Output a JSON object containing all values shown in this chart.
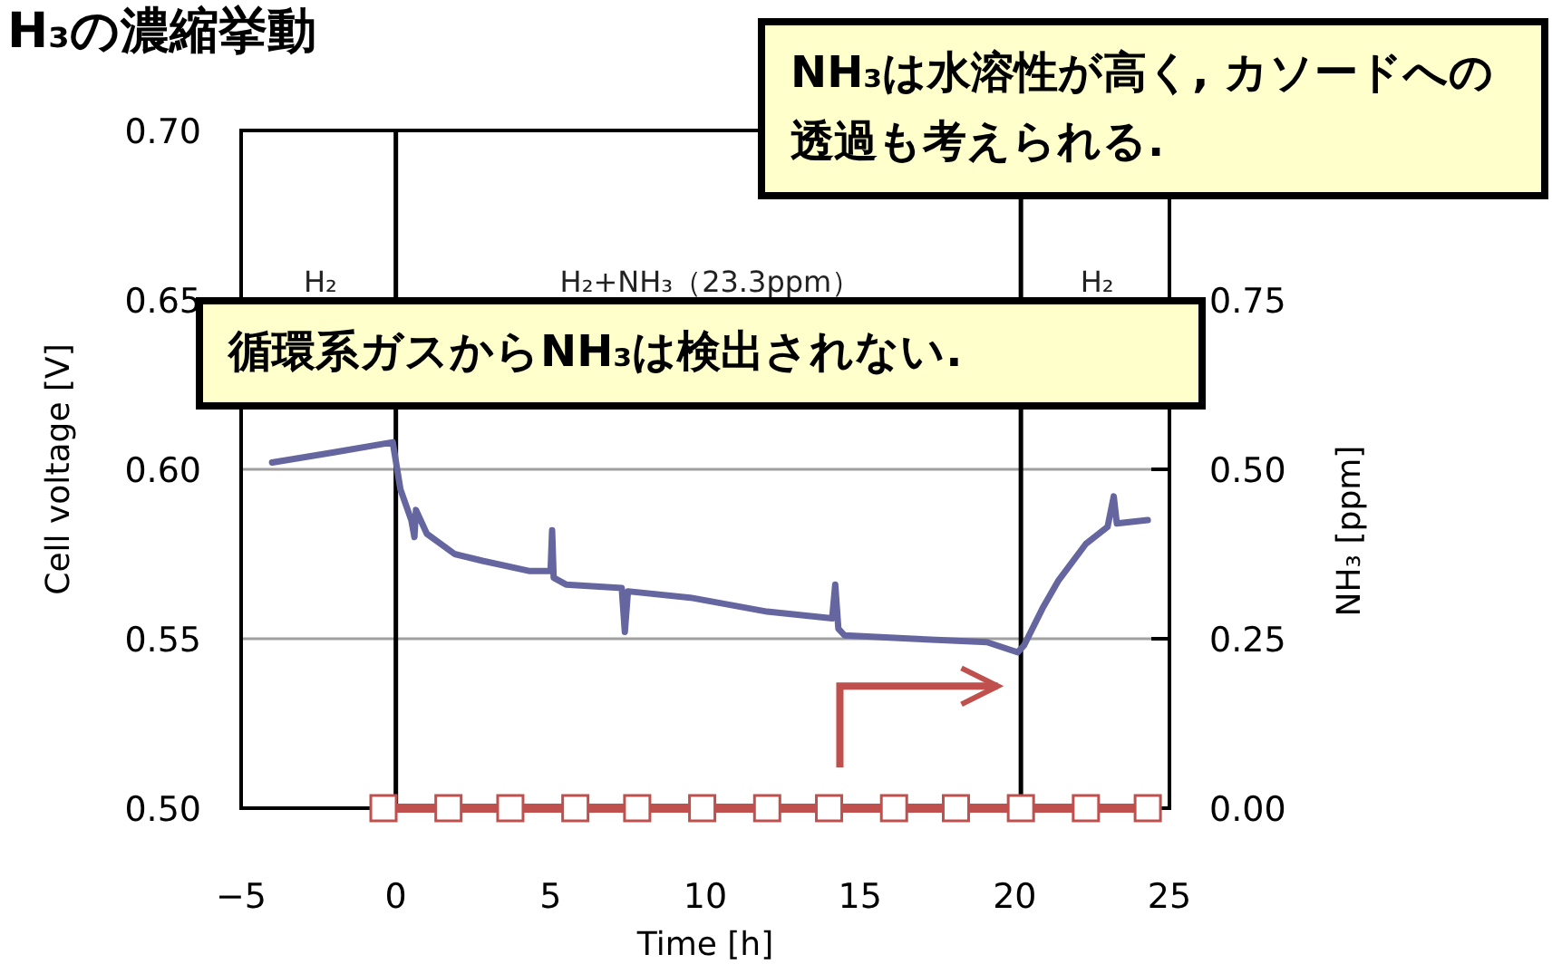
{
  "chart_data": {
    "type": "line",
    "title": "H₃の濃縮挙動",
    "xlabel": "Time [h]",
    "ylabel": "Cell voltage [V]",
    "y2label": "NH₃ [ppm]",
    "xlim": [
      -5,
      25
    ],
    "xticks": [
      {
        "value": -5,
        "label": "−5"
      },
      0,
      5,
      10,
      15,
      20,
      25
    ],
    "ylim": [
      0.5,
      0.7
    ],
    "yticks": [
      {
        "value": 0.5,
        "label": "0.50"
      },
      {
        "value": 0.55,
        "label": "0.55"
      },
      {
        "value": 0.6,
        "label": "0.60"
      },
      {
        "value": 0.65,
        "label": "0.65"
      },
      {
        "value": 0.7,
        "label": "0.70"
      }
    ],
    "y2lim": [
      0,
      1.0
    ],
    "y2ticks": [
      {
        "value": 0,
        "label": "0.00"
      },
      {
        "value": 0.25,
        "label": "0.25"
      },
      {
        "value": 0.5,
        "label": "0.50"
      },
      {
        "value": 0.75,
        "label": "0.75"
      }
    ],
    "grid": "y",
    "line_style": "solid",
    "series": [
      {
        "color": "#6566a0",
        "marker": "none",
        "x": [
          -4,
          -2,
          -0.1,
          0.15,
          0.5,
          0.6,
          0.65,
          1.0,
          1.9,
          2.8,
          4.3,
          5.0,
          5.05,
          5.1,
          5.5,
          7.3,
          7.4,
          7.5,
          9.6,
          12.0,
          14.1,
          14.2,
          14.3,
          14.5,
          16.7,
          19.1,
          20.1,
          20.3,
          20.9,
          21.4,
          22.3,
          23.0,
          23.2,
          23.3,
          24.3
        ],
        "values": [
          0.602,
          0.605,
          0.608,
          0.594,
          0.585,
          0.58,
          0.588,
          0.581,
          0.575,
          0.573,
          0.57,
          0.57,
          0.582,
          0.568,
          0.566,
          0.565,
          0.552,
          0.564,
          0.562,
          0.558,
          0.556,
          0.566,
          0.553,
          0.551,
          0.55,
          0.549,
          0.546,
          0.548,
          0.559,
          0.567,
          0.578,
          0.583,
          0.592,
          0.584,
          0.585
        ]
      },
      {
        "color": "#c0504d",
        "marker": "square",
        "axis": "y2",
        "x": [
          -0.4,
          1.7,
          3.7,
          5.8,
          7.8,
          9.9,
          12.0,
          14.0,
          16.1,
          18.1,
          20.2,
          22.3,
          24.3
        ],
        "values": [
          0,
          0,
          0,
          0,
          0,
          0,
          0,
          0,
          0,
          0,
          0,
          0,
          0
        ]
      }
    ],
    "ref_lines": [
      {
        "axis": "x",
        "value": 0,
        "color": "#000000"
      },
      {
        "axis": "x",
        "value": 20.2,
        "color": "#000000"
      }
    ],
    "annotations": [
      "NH₃は水溶性が高く, カソードへの透過も考えられる.",
      "循環系ガスからNH₃は検出されない.",
      "H₂",
      "H₂+NH₃（23.3ppm）",
      "H₂"
    ]
  }
}
